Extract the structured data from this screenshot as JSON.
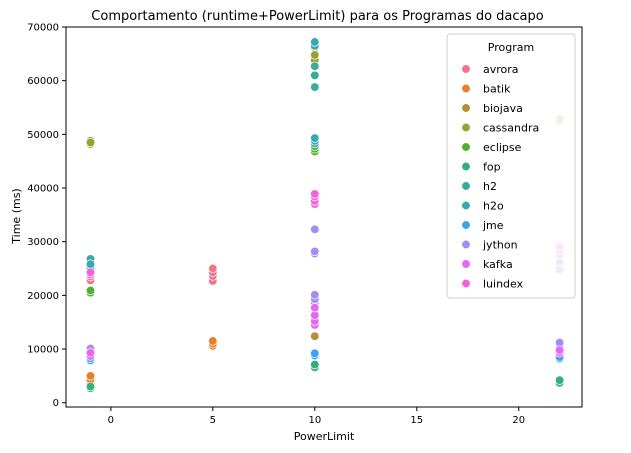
{
  "chart_data": {
    "type": "scatter",
    "title": "Comportamento (runtime+PowerLimit) para os Programas do dacapo",
    "xlabel": "PowerLimit",
    "ylabel": "Time (ms)",
    "xlim": [
      -2.2,
      23.1
    ],
    "ylim": [
      -800,
      70000
    ],
    "xticks": [
      0,
      5,
      10,
      15,
      20
    ],
    "yticks": [
      0,
      10000,
      20000,
      30000,
      40000,
      50000,
      60000,
      70000
    ],
    "grid": false,
    "legend": {
      "title": "Program",
      "placement": "top-right"
    },
    "series": [
      {
        "name": " avrora",
        "color": "#f77189",
        "points": [
          [
            -1,
            22800
          ],
          [
            -1,
            23500
          ],
          [
            5,
            22700
          ],
          [
            5,
            23600
          ],
          [
            5,
            24300
          ],
          [
            5,
            25000
          ]
        ]
      },
      {
        "name": " batik",
        "color": "#e5812a",
        "points": [
          [
            -1,
            3700
          ],
          [
            -1,
            4300
          ],
          [
            -1,
            5000
          ],
          [
            5,
            10600
          ],
          [
            5,
            11000
          ],
          [
            5,
            11500
          ]
        ]
      },
      {
        "name": " biojava",
        "color": "#b88f31",
        "points": [
          [
            -1,
            48800
          ],
          [
            10,
            12400
          ],
          [
            10,
            64500
          ],
          [
            10,
            65000
          ],
          [
            10,
            66200
          ]
        ]
      },
      {
        "name": " cassandra",
        "color": "#96a331",
        "points": [
          [
            -1,
            48200
          ],
          [
            -1,
            48500
          ],
          [
            10,
            63800
          ],
          [
            10,
            64800
          ],
          [
            22,
            52500
          ],
          [
            22,
            52900
          ]
        ]
      },
      {
        "name": " eclipse",
        "color": "#50b131",
        "points": [
          [
            -1,
            20500
          ],
          [
            -1,
            20900
          ],
          [
            10,
            46800
          ],
          [
            10,
            47300
          ],
          [
            10,
            47800
          ],
          [
            22,
            3600
          ],
          [
            22,
            4000
          ]
        ]
      },
      {
        "name": " fop",
        "color": "#33b07a",
        "points": [
          [
            -1,
            2700
          ],
          [
            -1,
            3000
          ],
          [
            10,
            6600
          ],
          [
            10,
            7100
          ],
          [
            22,
            3700
          ],
          [
            22,
            4200
          ]
        ]
      },
      {
        "name": " h2",
        "color": "#35ac9d",
        "points": [
          [
            -1,
            25500
          ],
          [
            -1,
            26300
          ],
          [
            -1,
            26800
          ],
          [
            10,
            58800
          ],
          [
            10,
            61000
          ],
          [
            10,
            62700
          ],
          [
            22,
            25600
          ],
          [
            22,
            26100
          ]
        ]
      },
      {
        "name": " h2o",
        "color": "#38a8b4",
        "points": [
          [
            -1,
            25000
          ],
          [
            -1,
            25800
          ],
          [
            10,
            48300
          ],
          [
            10,
            48800
          ],
          [
            10,
            49300
          ],
          [
            10,
            66500
          ],
          [
            10,
            67200
          ]
        ]
      },
      {
        "name": " jme",
        "color": "#3ba3ec",
        "points": [
          [
            -1,
            7900
          ],
          [
            -1,
            8300
          ],
          [
            10,
            8800
          ],
          [
            10,
            9200
          ],
          [
            22,
            8200
          ],
          [
            22,
            8500
          ]
        ]
      },
      {
        "name": " jython",
        "color": "#a48cf4",
        "points": [
          [
            -1,
            9100
          ],
          [
            -1,
            9600
          ],
          [
            -1,
            10100
          ],
          [
            10,
            18600
          ],
          [
            10,
            19300
          ],
          [
            10,
            20100
          ],
          [
            10,
            27800
          ],
          [
            10,
            28200
          ],
          [
            10,
            32300
          ],
          [
            22,
            10600
          ],
          [
            22,
            11200
          ]
        ]
      },
      {
        "name": " kafka",
        "color": "#e866f4",
        "points": [
          [
            -1,
            8700
          ],
          [
            -1,
            9300
          ],
          [
            10,
            14500
          ],
          [
            10,
            15200
          ],
          [
            10,
            16300
          ],
          [
            10,
            17700
          ],
          [
            22,
            9300
          ],
          [
            22,
            9800
          ]
        ]
      },
      {
        "name": " luindex",
        "color": "#f561dd",
        "points": [
          [
            -1,
            23900
          ],
          [
            -1,
            24300
          ],
          [
            10,
            37000
          ],
          [
            10,
            37600
          ],
          [
            10,
            38400
          ],
          [
            10,
            38900
          ],
          [
            22,
            24800
          ],
          [
            22,
            27600
          ],
          [
            22,
            28400
          ],
          [
            22,
            29100
          ]
        ]
      }
    ]
  }
}
